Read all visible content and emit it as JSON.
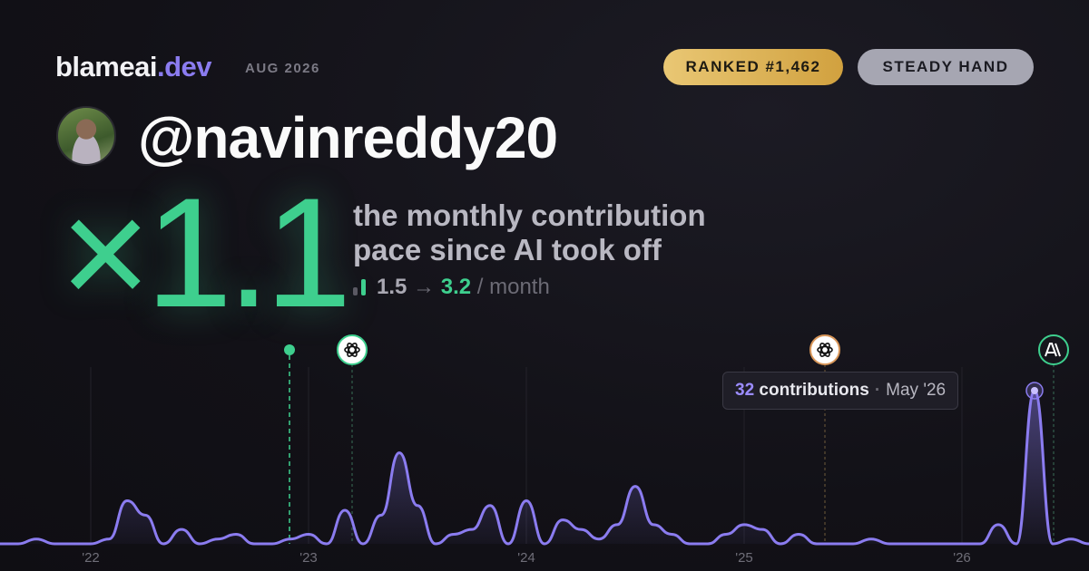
{
  "header": {
    "brand": "blameai",
    "brand_tld": ".dev",
    "period": "AUG 2026",
    "badges": [
      "RANKED #1,462",
      "STEADY HAND"
    ],
    "username": "@navinreddy20"
  },
  "hero": {
    "multiplier": "×1.1",
    "caption_lines": [
      "the monthly contribution",
      "pace since AI took off"
    ],
    "before": "1.5",
    "arrow": "→",
    "after": "3.2",
    "unit": "/ month"
  },
  "chart_data": {
    "type": "area",
    "color": "#8b7cf0",
    "x": [
      2021.5833,
      2021.6667,
      2021.75,
      2021.8333,
      2021.9167,
      2022,
      2022.0833,
      2022.1667,
      2022.25,
      2022.3333,
      2022.4167,
      2022.5,
      2022.5833,
      2022.6667,
      2022.75,
      2022.8333,
      2022.9167,
      2023,
      2023.0833,
      2023.1667,
      2023.25,
      2023.3333,
      2023.4167,
      2023.5,
      2023.5833,
      2023.6667,
      2023.75,
      2023.8333,
      2023.9167,
      2024,
      2024.0833,
      2024.1667,
      2024.25,
      2024.3333,
      2024.4167,
      2024.5,
      2024.5833,
      2024.6667,
      2024.75,
      2024.8333,
      2024.9167,
      2025,
      2025.0833,
      2025.1667,
      2025.25,
      2025.3333,
      2025.4167,
      2025.5,
      2025.5833,
      2025.6667,
      2025.75,
      2025.8333,
      2025.9167,
      2026,
      2026.0833,
      2026.1667,
      2026.25,
      2026.3333,
      2026.4167,
      2026.5,
      2026.5833
    ],
    "values": [
      0,
      0,
      1,
      0,
      0,
      0,
      1,
      9,
      6,
      0,
      3,
      0,
      1,
      2,
      0,
      0,
      1,
      2,
      0,
      7,
      0,
      6,
      19,
      8,
      0,
      2,
      3,
      8,
      0,
      9,
      0,
      5,
      3,
      1,
      4,
      12,
      4,
      2,
      0,
      0,
      2,
      4,
      3,
      0,
      2,
      0,
      0,
      0,
      1,
      0,
      0,
      0,
      0,
      0,
      0,
      4,
      0,
      32,
      0,
      1,
      0
    ],
    "xlim": [
      2021.5833,
      2026.5833
    ],
    "ylim": [
      0,
      32
    ],
    "xticks": [
      {
        "value": 2022,
        "label": "'22"
      },
      {
        "value": 2023,
        "label": "'23"
      },
      {
        "value": 2024,
        "label": "'24"
      },
      {
        "value": 2025,
        "label": "'25"
      },
      {
        "value": 2026,
        "label": "'26"
      }
    ],
    "grid": true,
    "tooltip": {
      "label": "contributions",
      "separator": "·",
      "date": "May '26"
    }
  }
}
